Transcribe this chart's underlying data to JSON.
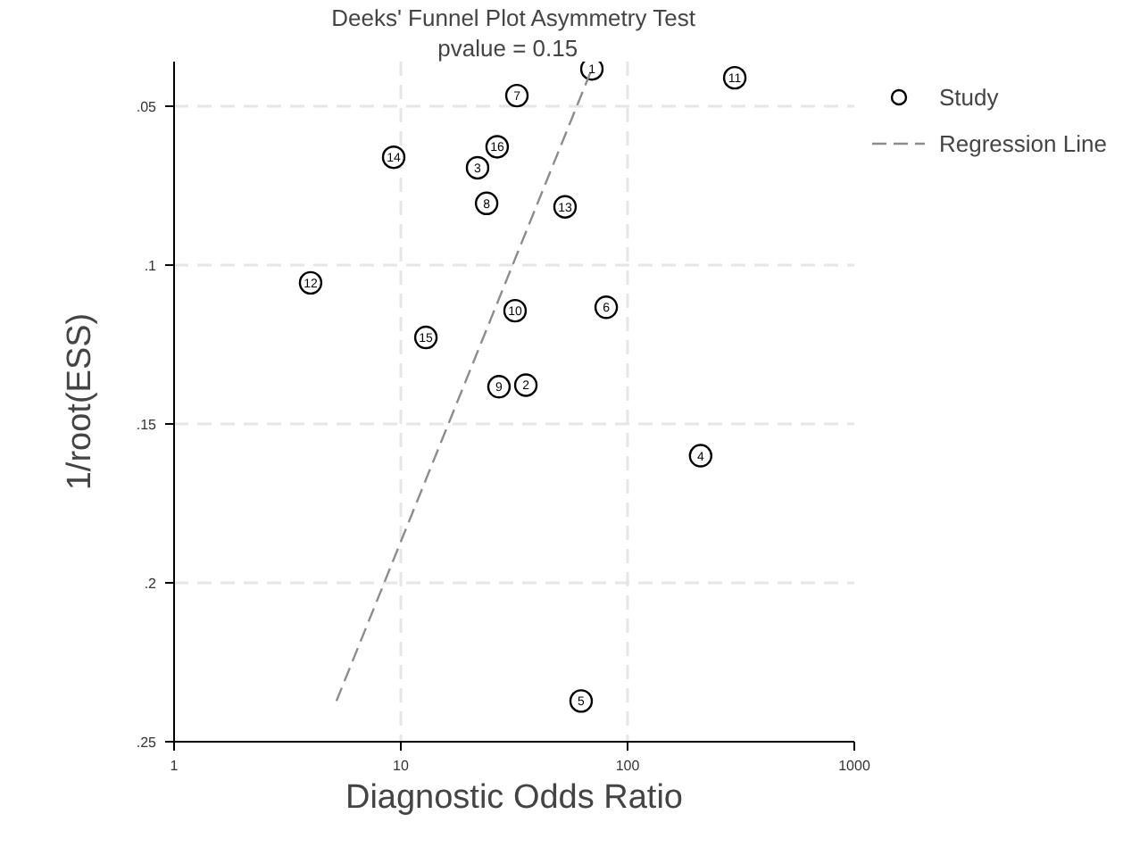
{
  "chart_data": {
    "type": "scatter",
    "title": "Deeks' Funnel Plot Asymmetry Test",
    "subtitle": "pvalue =   0.15",
    "xlabel": "Diagnostic Odds Ratio",
    "ylabel": "1/root(ESS)",
    "log": "x",
    "xlim": [
      1,
      1000
    ],
    "xticks": [
      1,
      10,
      100,
      1000
    ],
    "ylim": [
      0.25,
      0.036
    ],
    "yticks": [
      {
        "value": 0.05,
        "label": ".05"
      },
      {
        "value": 0.1,
        "label": ".1"
      },
      {
        "value": 0.15,
        "label": ".15"
      },
      {
        "value": 0.2,
        "label": ".2"
      },
      {
        "value": 0.25,
        "label": ".25"
      }
    ],
    "grid": true,
    "legend": "right",
    "series": [
      {
        "name": "Study",
        "marker": "circle",
        "color": "#000000",
        "x": [
          69.6,
          35.6,
          21.8,
          210,
          62.4,
          80.5,
          32.5,
          23.9,
          27.1,
          31.9,
          297,
          4.0,
          53,
          9.3,
          12.9,
          26.6
        ],
        "values": [
          0.0383,
          0.1378,
          0.0694,
          0.16,
          0.2372,
          0.1133,
          0.0467,
          0.0806,
          0.1383,
          0.1144,
          0.0411,
          0.1056,
          0.0817,
          0.0661,
          0.1228,
          0.0628
        ]
      },
      {
        "name": "Regression Line",
        "type": "line",
        "color": "#8c8c8c",
        "line_style": "dashed",
        "x": [
          5.2,
          69.6
        ],
        "values": [
          0.2372,
          0.0383
        ]
      }
    ],
    "annotations": [
      {
        "text": "1",
        "x": 69.6,
        "y": 0.0383
      },
      {
        "text": "2",
        "x": 35.6,
        "y": 0.1378
      },
      {
        "text": "3",
        "x": 21.8,
        "y": 0.0694
      },
      {
        "text": "4",
        "x": 210,
        "y": 0.16
      },
      {
        "text": "5",
        "x": 62.4,
        "y": 0.2372
      },
      {
        "text": "6",
        "x": 80.5,
        "y": 0.1133
      },
      {
        "text": "7",
        "x": 32.5,
        "y": 0.0467
      },
      {
        "text": "8",
        "x": 23.9,
        "y": 0.0806
      },
      {
        "text": "9",
        "x": 27.1,
        "y": 0.1383
      },
      {
        "text": "10",
        "x": 31.9,
        "y": 0.1144
      },
      {
        "text": "11",
        "x": 297,
        "y": 0.0411
      },
      {
        "text": "12",
        "x": 4.0,
        "y": 0.1056
      },
      {
        "text": "13",
        "x": 53,
        "y": 0.0817
      },
      {
        "text": "14",
        "x": 9.3,
        "y": 0.0661
      },
      {
        "text": "15",
        "x": 12.9,
        "y": 0.1228
      },
      {
        "text": "16",
        "x": 26.6,
        "y": 0.0628
      }
    ]
  }
}
